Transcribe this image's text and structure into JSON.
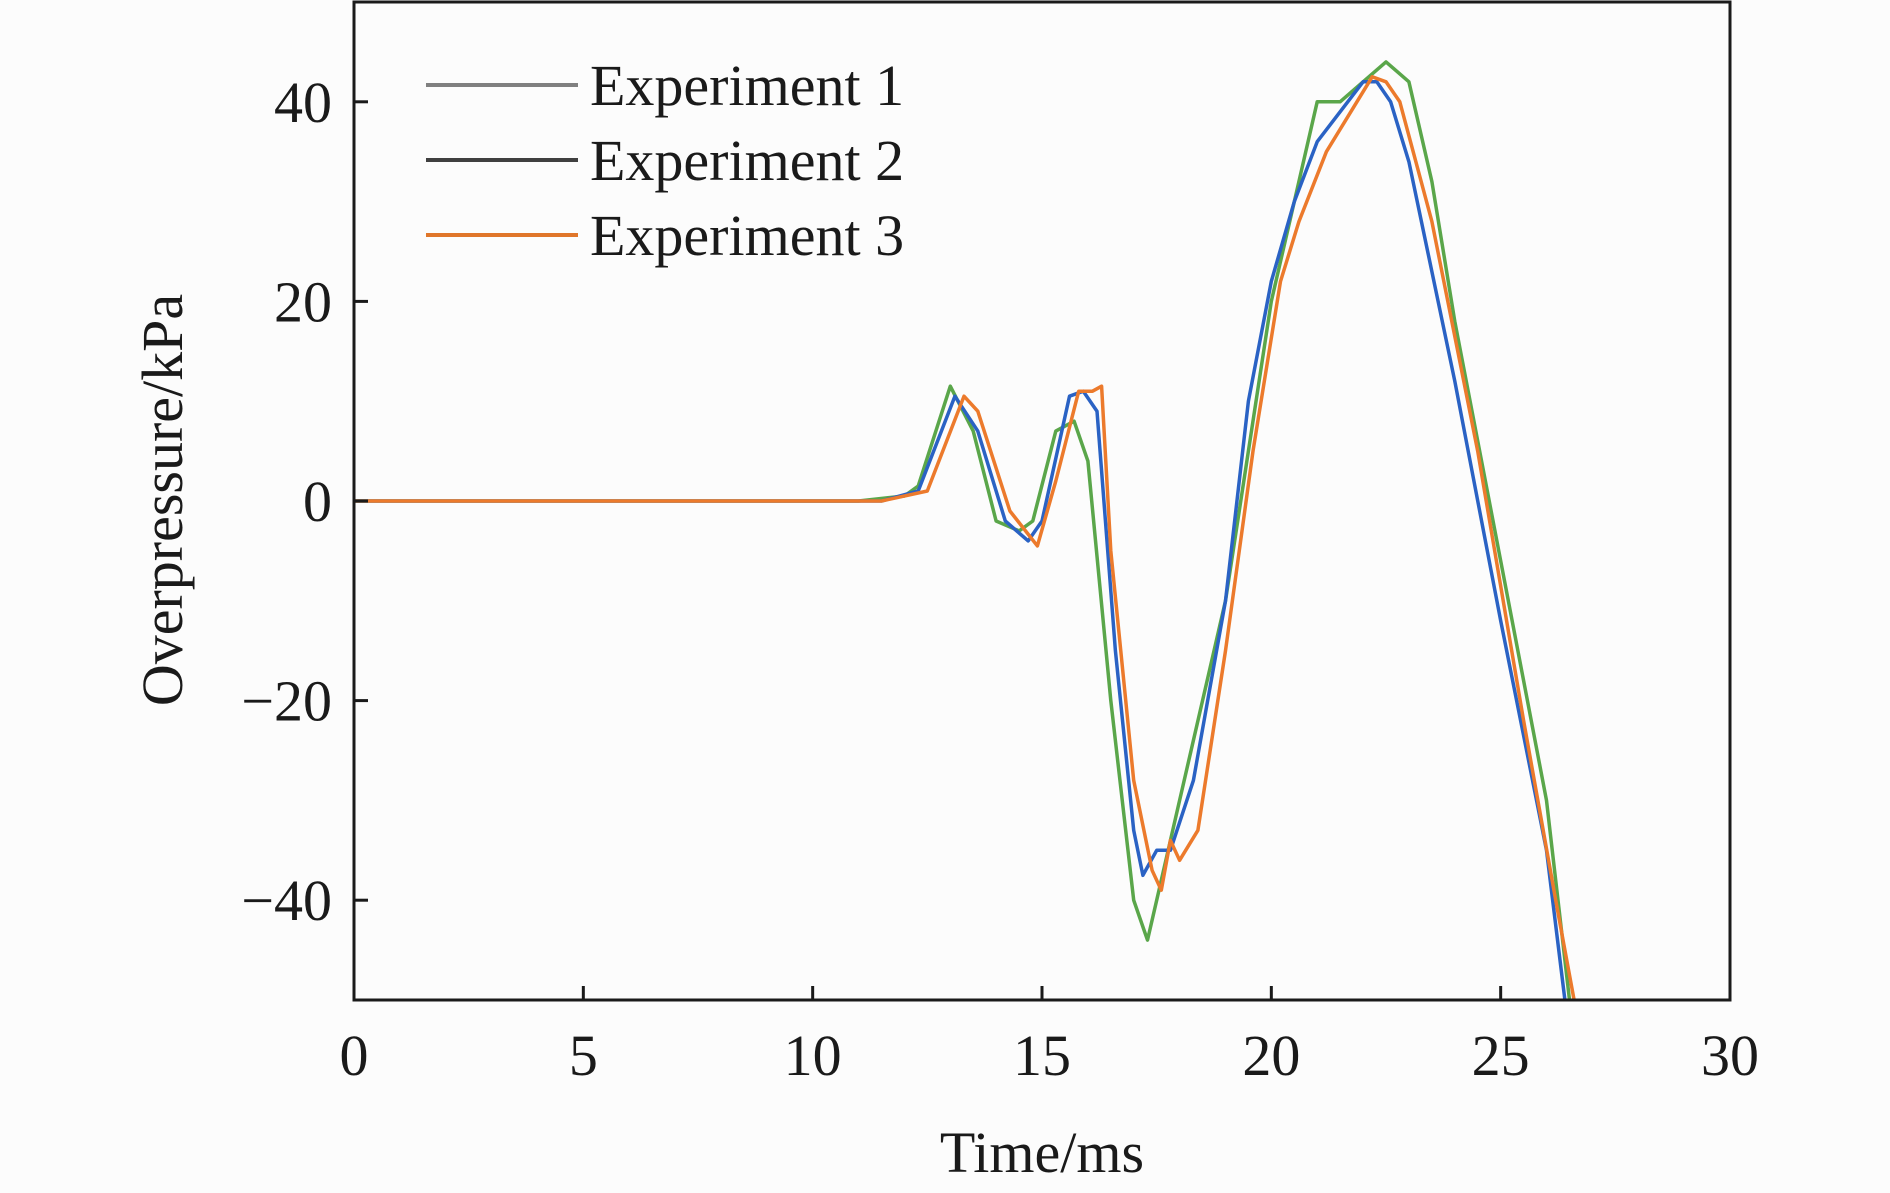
{
  "chart_data": {
    "type": "line",
    "title": "",
    "xlabel": "Time/ms",
    "ylabel": "Overpressure/kPa",
    "xlim": [
      0,
      30
    ],
    "ylim": [
      -50,
      50
    ],
    "xticks": [
      0,
      5,
      10,
      15,
      20,
      25,
      30
    ],
    "yticks": [
      -40,
      -20,
      0,
      20,
      40
    ],
    "xtick_labels": [
      "0",
      "5",
      "10",
      "15",
      "20",
      "25",
      "30"
    ],
    "ytick_labels": [
      "−40",
      "−20",
      "0",
      "20",
      "40"
    ],
    "grid": false,
    "legend_position": "top-left",
    "series": [
      {
        "name": "Experiment 1",
        "color": "#5aa64a",
        "legend_color": "#808080",
        "x": [
          0,
          11,
          12,
          12.3,
          13,
          13.5,
          14,
          14.5,
          14.8,
          15.3,
          15.7,
          16,
          16.5,
          17,
          17.3,
          17.6,
          18,
          19,
          20,
          20.5,
          21,
          21.5,
          22,
          22.5,
          23,
          23.5,
          24,
          25,
          26,
          26.5
        ],
        "y": [
          0,
          0,
          0.5,
          1.5,
          11.5,
          7,
          -2,
          -3,
          -2,
          7,
          8,
          4,
          -20,
          -40,
          -44,
          -38,
          -30,
          -10,
          20,
          30,
          40,
          40,
          42,
          44,
          42,
          32,
          18,
          -6,
          -30,
          -50
        ]
      },
      {
        "name": "Experiment 2",
        "color": "#2a62c4",
        "legend_color": "#404040",
        "x": [
          0,
          11.5,
          12.3,
          13.1,
          13.6,
          14.2,
          14.7,
          15,
          15.6,
          15.9,
          16.2,
          16.6,
          17,
          17.2,
          17.5,
          17.8,
          18.3,
          19,
          19.5,
          20,
          20.5,
          21,
          22,
          22.3,
          22.6,
          23,
          24,
          25,
          26,
          26.4
        ],
        "y": [
          0,
          0,
          1,
          10.5,
          7,
          -2,
          -4,
          -2,
          10.5,
          11,
          9,
          -15,
          -33,
          -37.5,
          -35,
          -35,
          -28,
          -10,
          10,
          22,
          30,
          36,
          42,
          42,
          40,
          34,
          12,
          -12,
          -35,
          -50
        ]
      },
      {
        "name": "Experiment 3",
        "color": "#ec7a2c",
        "legend_color": "#e0762a",
        "x": [
          0,
          11.5,
          12.5,
          13.3,
          13.6,
          14.3,
          14.9,
          15.3,
          15.8,
          16.1,
          16.3,
          16.5,
          17,
          17.4,
          17.6,
          17.8,
          18,
          18.4,
          19,
          19.6,
          20.2,
          20.6,
          21.2,
          21.6,
          22.2,
          22.5,
          22.8,
          23.5,
          24.5,
          25.5,
          26.2,
          26.6
        ],
        "y": [
          0,
          0,
          1,
          10.5,
          9,
          -1,
          -4.5,
          2,
          11,
          11,
          11.5,
          -5,
          -28,
          -37,
          -39,
          -34,
          -36,
          -33,
          -15,
          5,
          22,
          28,
          35,
          38,
          42.5,
          42,
          40,
          28,
          5,
          -22,
          -40,
          -50
        ]
      }
    ]
  }
}
